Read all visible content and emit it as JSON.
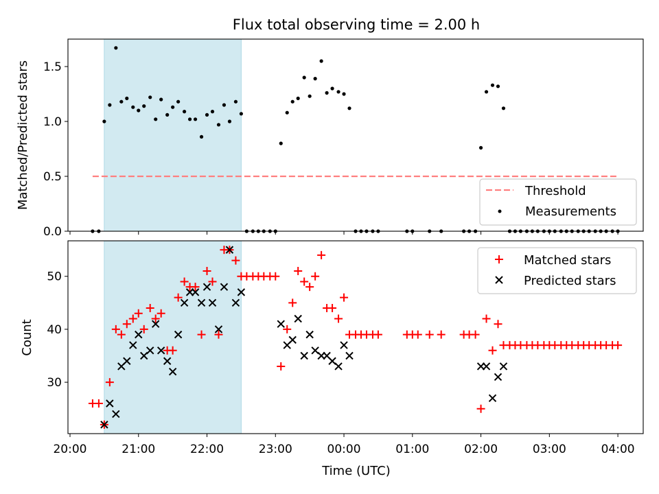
{
  "title": "Flux total observing time = 2.00 h",
  "colors": {
    "measure": "#000000",
    "matched": "#ff0000",
    "predicted": "#000000",
    "threshold": "#ff7f7f",
    "shade": "#add8e6"
  },
  "chart_data": [
    {
      "type": "scatter",
      "panel": "top",
      "ylabel": "Matched/Predicted stars",
      "ylim": [
        0,
        1.75
      ],
      "yticks": [
        0.0,
        0.5,
        1.0,
        1.5
      ],
      "ytick_labels": [
        "0.0",
        "0.5",
        "1.0",
        "1.5"
      ],
      "xlim": [
        -0.03,
        8.37
      ],
      "shaded_span": [
        0.5,
        2.5
      ],
      "threshold": {
        "label": "Threshold",
        "value": 0.5,
        "x": [
          0.33,
          8.0
        ]
      },
      "legend": {
        "placement": "lower-right",
        "entries": [
          "Threshold",
          "Measurements"
        ]
      },
      "series": [
        {
          "name": "Measurements",
          "x": [
            0.33,
            0.42,
            0.5,
            0.58,
            0.67,
            0.75,
            0.83,
            0.92,
            1.0,
            1.08,
            1.17,
            1.25,
            1.33,
            1.42,
            1.5,
            1.58,
            1.67,
            1.75,
            1.83,
            1.92,
            2.0,
            2.08,
            2.17,
            2.25,
            2.33,
            2.42,
            2.5,
            2.58,
            2.67,
            2.75,
            2.83,
            2.92,
            3.0,
            3.08,
            3.17,
            3.25,
            3.33,
            3.42,
            3.5,
            3.58,
            3.67,
            3.75,
            3.83,
            3.92,
            4.0,
            4.08,
            4.17,
            4.25,
            4.33,
            4.42,
            4.5,
            4.92,
            5.0,
            5.25,
            5.42,
            5.75,
            5.83,
            5.92,
            6.0,
            6.08,
            6.17,
            6.25,
            6.33,
            6.42,
            6.5,
            6.58,
            6.67,
            6.75,
            6.83,
            6.92,
            7.0,
            7.08,
            7.17,
            7.25,
            7.33,
            7.42,
            7.5,
            7.58,
            7.67,
            7.75,
            7.83,
            7.92,
            8.0
          ],
          "y": [
            0,
            0,
            1.0,
            1.15,
            1.67,
            1.18,
            1.21,
            1.13,
            1.1,
            1.14,
            1.22,
            1.02,
            1.2,
            1.06,
            1.13,
            1.18,
            1.09,
            1.02,
            1.02,
            0.86,
            1.06,
            1.09,
            0.97,
            1.15,
            1.0,
            1.18,
            1.07,
            0,
            0,
            0,
            0,
            0,
            0,
            0.8,
            1.08,
            1.18,
            1.21,
            1.4,
            1.23,
            1.39,
            1.55,
            1.26,
            1.3,
            1.27,
            1.25,
            1.12,
            0,
            0,
            0,
            0,
            0,
            0,
            0,
            0,
            0,
            0,
            0,
            0,
            0.76,
            1.27,
            1.33,
            1.32,
            1.12,
            0,
            0,
            0,
            0,
            0,
            0,
            0,
            0,
            0,
            0,
            0,
            0,
            0,
            0,
            0,
            0,
            0,
            0,
            0,
            0
          ]
        }
      ]
    },
    {
      "type": "scatter",
      "panel": "bottom",
      "xlabel": "Time (UTC)",
      "ylabel": "Count",
      "ylim": [
        20.3,
        56.7
      ],
      "yticks": [
        30,
        40,
        50
      ],
      "ytick_labels": [
        "30",
        "40",
        "50"
      ],
      "xlim": [
        -0.03,
        8.37
      ],
      "xticks": [
        0,
        1,
        2,
        3,
        4,
        5,
        6,
        7,
        8
      ],
      "xtick_labels": [
        "20:00",
        "21:00",
        "22:00",
        "23:00",
        "00:00",
        "01:00",
        "02:00",
        "03:00",
        "04:00"
      ],
      "shaded_span": [
        0.5,
        2.5
      ],
      "legend": {
        "placement": "top-right",
        "entries": [
          "Matched stars",
          "Predicted stars"
        ]
      },
      "series": [
        {
          "name": "Matched stars",
          "marker": "+",
          "x": [
            0.33,
            0.42,
            0.5,
            0.58,
            0.67,
            0.75,
            0.83,
            0.92,
            1.0,
            1.08,
            1.17,
            1.25,
            1.33,
            1.42,
            1.5,
            1.58,
            1.67,
            1.75,
            1.83,
            1.92,
            2.0,
            2.08,
            2.17,
            2.25,
            2.33,
            2.42,
            2.5,
            2.58,
            2.67,
            2.75,
            2.83,
            2.92,
            3.0,
            3.08,
            3.17,
            3.25,
            3.33,
            3.42,
            3.5,
            3.58,
            3.67,
            3.75,
            3.83,
            3.92,
            4.0,
            4.08,
            4.17,
            4.25,
            4.33,
            4.42,
            4.5,
            4.92,
            5.0,
            5.08,
            5.25,
            5.42,
            5.75,
            5.83,
            5.92,
            6.0,
            6.08,
            6.17,
            6.25,
            6.33,
            6.42,
            6.5,
            6.58,
            6.67,
            6.75,
            6.83,
            6.92,
            7.0,
            7.08,
            7.17,
            7.25,
            7.33,
            7.42,
            7.5,
            7.58,
            7.67,
            7.75,
            7.83,
            7.92,
            8.0
          ],
          "y": [
            26,
            26,
            22,
            30,
            40,
            39,
            41,
            42,
            43,
            40,
            44,
            42,
            43,
            36,
            36,
            46,
            49,
            48,
            48,
            39,
            51,
            49,
            39,
            55,
            55,
            53,
            50,
            50,
            50,
            50,
            50,
            50,
            50,
            33,
            40,
            45,
            51,
            49,
            48,
            50,
            54,
            44,
            44,
            42,
            46,
            39,
            39,
            39,
            39,
            39,
            39,
            39,
            39,
            39,
            39,
            39,
            39,
            39,
            39,
            25,
            42,
            36,
            41,
            37,
            37,
            37,
            37,
            37,
            37,
            37,
            37,
            37,
            37,
            37,
            37,
            37,
            37,
            37,
            37,
            37,
            37,
            37,
            37,
            37
          ]
        },
        {
          "name": "Predicted stars",
          "marker": "x",
          "x": [
            0.5,
            0.58,
            0.67,
            0.75,
            0.83,
            0.92,
            1.0,
            1.08,
            1.17,
            1.25,
            1.33,
            1.42,
            1.5,
            1.58,
            1.67,
            1.75,
            1.83,
            1.92,
            2.0,
            2.08,
            2.17,
            2.25,
            2.33,
            2.42,
            2.5,
            3.08,
            3.17,
            3.25,
            3.33,
            3.42,
            3.5,
            3.58,
            3.67,
            3.75,
            3.83,
            3.92,
            4.0,
            4.08,
            6.0,
            6.08,
            6.17,
            6.25,
            6.33
          ],
          "y": [
            22,
            26,
            24,
            33,
            34,
            37,
            39,
            35,
            36,
            41,
            36,
            34,
            32,
            39,
            45,
            47,
            47,
            45,
            48,
            45,
            40,
            48,
            55,
            45,
            47,
            41,
            37,
            38,
            42,
            35,
            39,
            36,
            35,
            35,
            34,
            33,
            37,
            35,
            33,
            33,
            27,
            31,
            33
          ]
        }
      ]
    }
  ]
}
